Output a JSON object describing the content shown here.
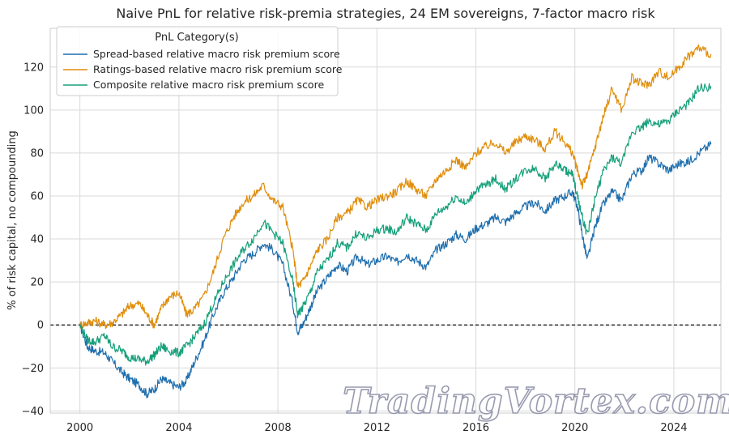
{
  "chart_data": {
    "type": "line",
    "title": "Naive PnL for relative risk-premia strategies, 24 EM sovereigns, 7-factor macro risk",
    "ylabel": "% of risk capital, no compounding",
    "xlabel": "",
    "xlim": [
      1998.8,
      2025.9
    ],
    "ylim": [
      -41,
      138
    ],
    "x_ticks": [
      2000,
      2004,
      2008,
      2012,
      2016,
      2020,
      2024
    ],
    "y_ticks": [
      -40,
      -20,
      0,
      20,
      40,
      60,
      80,
      100,
      120
    ],
    "zero_line": true,
    "grid": true,
    "legend": {
      "title": "PnL Category(s)",
      "position": "top-left"
    },
    "series": [
      {
        "name": "Spread-based relative macro risk premium score",
        "color": "#1f6fae",
        "x": [
          2000.0,
          2000.3,
          2000.6,
          2001.0,
          2001.3,
          2001.7,
          2002.0,
          2002.4,
          2002.7,
          2003.0,
          2003.3,
          2003.6,
          2004.0,
          2004.3,
          2004.6,
          2005.0,
          2005.4,
          2005.8,
          2006.2,
          2006.6,
          2007.0,
          2007.4,
          2007.8,
          2008.2,
          2008.6,
          2008.8,
          2009.0,
          2009.3,
          2009.6,
          2010.0,
          2010.4,
          2010.8,
          2011.2,
          2011.6,
          2012.0,
          2012.4,
          2012.8,
          2013.2,
          2013.6,
          2014.0,
          2014.4,
          2014.8,
          2015.2,
          2015.6,
          2016.0,
          2016.4,
          2016.8,
          2017.2,
          2017.6,
          2018.0,
          2018.4,
          2018.8,
          2019.2,
          2019.6,
          2019.9,
          2020.1,
          2020.3,
          2020.5,
          2020.8,
          2021.1,
          2021.5,
          2021.9,
          2022.3,
          2022.7,
          2023.0,
          2023.4,
          2023.8,
          2024.2,
          2024.6,
          2025.0,
          2025.5
        ],
        "values": [
          0,
          -10,
          -12,
          -13,
          -17,
          -22,
          -25,
          -28,
          -32,
          -30,
          -25,
          -27,
          -29,
          -26,
          -18,
          -8,
          5,
          15,
          22,
          30,
          33,
          38,
          35,
          28,
          10,
          -3,
          0,
          8,
          16,
          22,
          28,
          25,
          32,
          28,
          30,
          32,
          29,
          33,
          30,
          27,
          35,
          38,
          42,
          40,
          45,
          47,
          50,
          48,
          52,
          55,
          57,
          53,
          58,
          60,
          62,
          55,
          42,
          30,
          45,
          55,
          62,
          58,
          70,
          72,
          78,
          75,
          72,
          75,
          76,
          80,
          84
        ]
      },
      {
        "name": "Ratings-based relative macro risk premium score",
        "color": "#e08e0b",
        "x": [
          2000.0,
          2000.3,
          2000.6,
          2001.0,
          2001.3,
          2001.7,
          2002.0,
          2002.4,
          2002.7,
          2003.0,
          2003.3,
          2003.6,
          2004.0,
          2004.3,
          2004.6,
          2005.0,
          2005.4,
          2005.8,
          2006.2,
          2006.6,
          2007.0,
          2007.4,
          2007.8,
          2008.2,
          2008.6,
          2008.8,
          2009.0,
          2009.3,
          2009.6,
          2010.0,
          2010.4,
          2010.8,
          2011.2,
          2011.6,
          2012.0,
          2012.4,
          2012.8,
          2013.2,
          2013.6,
          2014.0,
          2014.4,
          2014.8,
          2015.2,
          2015.6,
          2016.0,
          2016.4,
          2016.8,
          2017.2,
          2017.6,
          2018.0,
          2018.4,
          2018.8,
          2019.2,
          2019.6,
          2019.9,
          2020.1,
          2020.3,
          2020.5,
          2020.8,
          2021.1,
          2021.5,
          2021.9,
          2022.3,
          2022.7,
          2023.0,
          2023.4,
          2023.8,
          2024.2,
          2024.6,
          2025.0,
          2025.5
        ],
        "values": [
          0,
          1,
          2,
          0,
          1,
          5,
          9,
          10,
          5,
          0,
          8,
          13,
          15,
          5,
          7,
          13,
          25,
          40,
          50,
          57,
          60,
          65,
          58,
          55,
          35,
          18,
          20,
          27,
          35,
          40,
          50,
          52,
          58,
          55,
          58,
          60,
          62,
          67,
          63,
          60,
          68,
          72,
          77,
          73,
          80,
          83,
          85,
          80,
          85,
          88,
          86,
          82,
          90,
          85,
          80,
          72,
          65,
          70,
          82,
          95,
          110,
          100,
          115,
          112,
          112,
          118,
          115,
          120,
          125,
          129,
          126
        ]
      },
      {
        "name": "Composite relative macro risk premium score",
        "color": "#16a07a",
        "x": [
          2000.0,
          2000.3,
          2000.6,
          2001.0,
          2001.3,
          2001.7,
          2002.0,
          2002.4,
          2002.7,
          2003.0,
          2003.3,
          2003.6,
          2004.0,
          2004.3,
          2004.6,
          2005.0,
          2005.4,
          2005.8,
          2006.2,
          2006.6,
          2007.0,
          2007.4,
          2007.8,
          2008.2,
          2008.6,
          2008.8,
          2009.0,
          2009.3,
          2009.6,
          2010.0,
          2010.4,
          2010.8,
          2011.2,
          2011.6,
          2012.0,
          2012.4,
          2012.8,
          2013.2,
          2013.6,
          2014.0,
          2014.4,
          2014.8,
          2015.2,
          2015.6,
          2016.0,
          2016.4,
          2016.8,
          2017.2,
          2017.6,
          2018.0,
          2018.4,
          2018.8,
          2019.2,
          2019.6,
          2019.9,
          2020.1,
          2020.3,
          2020.5,
          2020.8,
          2021.1,
          2021.5,
          2021.9,
          2022.3,
          2022.7,
          2023.0,
          2023.4,
          2023.8,
          2024.2,
          2024.6,
          2025.0,
          2025.5
        ],
        "values": [
          0,
          -7,
          -8,
          -5,
          -10,
          -12,
          -15,
          -16,
          -17,
          -14,
          -10,
          -12,
          -13,
          -10,
          -6,
          0,
          10,
          20,
          28,
          35,
          40,
          48,
          43,
          38,
          20,
          5,
          8,
          15,
          25,
          30,
          38,
          36,
          43,
          40,
          44,
          45,
          43,
          50,
          47,
          44,
          52,
          55,
          60,
          56,
          63,
          65,
          68,
          63,
          68,
          72,
          73,
          68,
          75,
          72,
          70,
          60,
          50,
          42,
          58,
          70,
          78,
          75,
          90,
          92,
          95,
          93,
          95,
          100,
          103,
          110,
          111
        ]
      }
    ]
  },
  "watermark": "TradingVortex.com"
}
